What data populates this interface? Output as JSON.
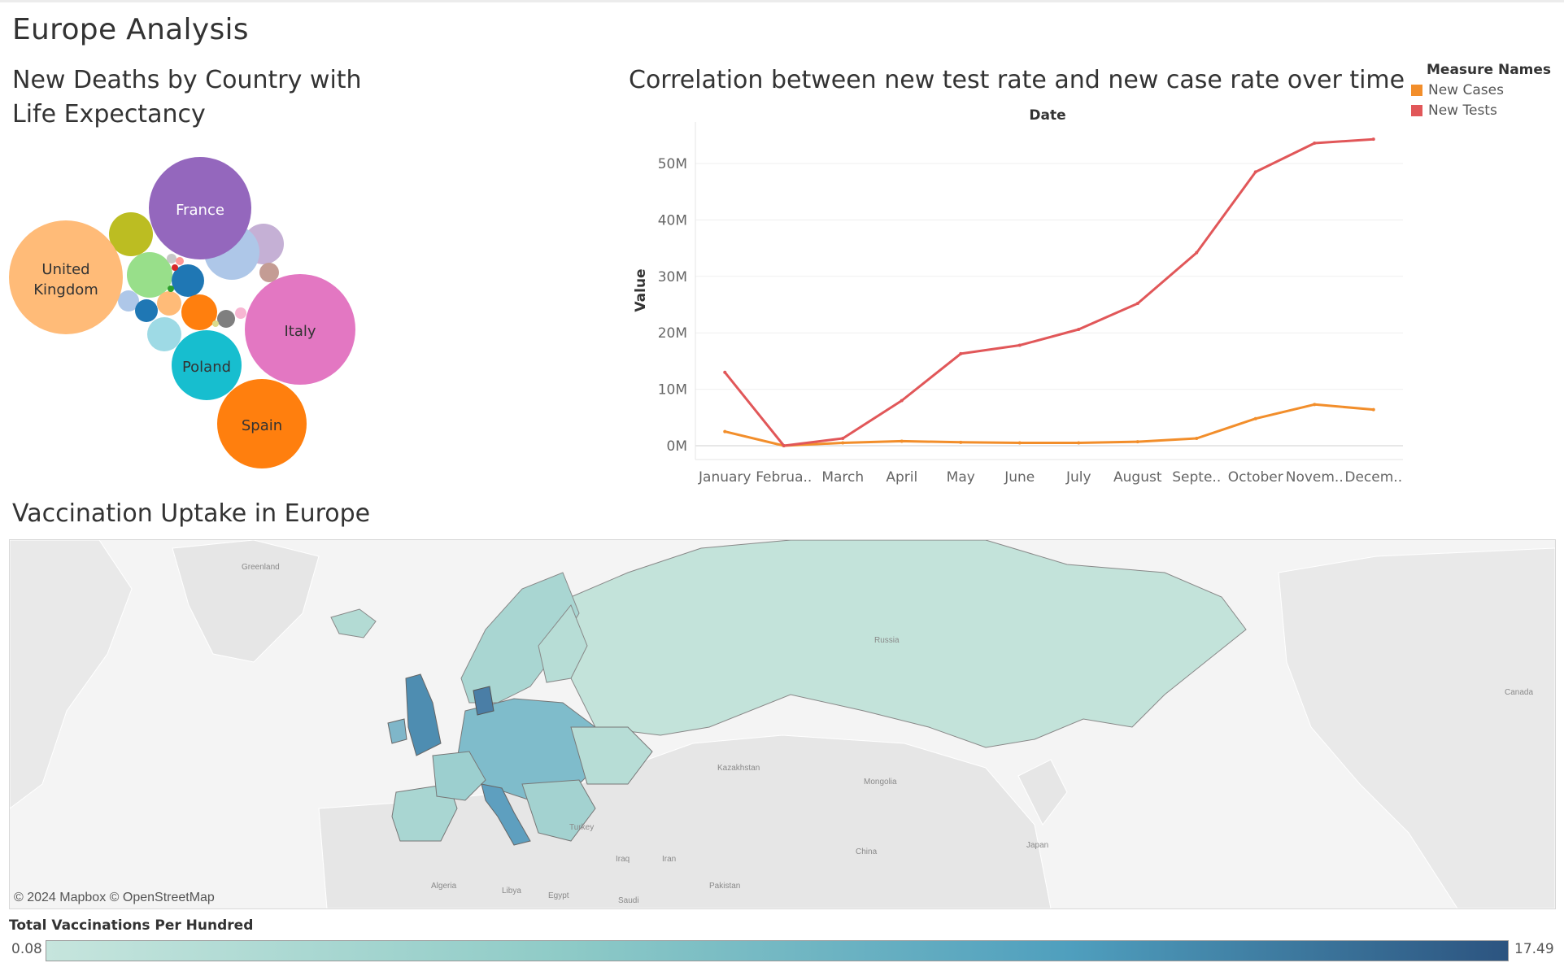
{
  "dashboard": {
    "title": "Europe Analysis"
  },
  "bubble": {
    "title": "New Deaths by Country with Life Expectancy",
    "labeled": [
      {
        "label": "France",
        "color": "#9467bd"
      },
      {
        "label": "United Kingdom",
        "label_lines": [
          "United",
          "Kingdom"
        ],
        "color": "#ffbb78"
      },
      {
        "label": "Italy",
        "color": "#e377c2"
      },
      {
        "label": "Poland",
        "color": "#17becf"
      },
      {
        "label": "Spain",
        "color": "#ff7f0e"
      }
    ]
  },
  "chart_data": {
    "type": "line",
    "title": "Correlation between new test rate and new case rate over time",
    "xlabel": "Date",
    "ylabel": "Value",
    "categories": [
      "January",
      "Februa..",
      "March",
      "April",
      "May",
      "June",
      "July",
      "August",
      "Septe..",
      "October",
      "Novem..",
      "Decem.."
    ],
    "y_ticks": [
      "0M",
      "10M",
      "20M",
      "30M",
      "40M",
      "50M"
    ],
    "ylim": [
      0,
      55000000
    ],
    "legend": {
      "title": "Measure Names",
      "placement": "right"
    },
    "series": [
      {
        "name": "New Cases",
        "color": "#f28e2b",
        "values": [
          2500000,
          0,
          500000,
          800000,
          600000,
          500000,
          500000,
          700000,
          1300000,
          4800000,
          7300000,
          6400000
        ]
      },
      {
        "name": "New Tests",
        "color": "#e15759",
        "values": [
          13000000,
          0,
          1300000,
          8000000,
          16300000,
          17800000,
          20600000,
          25200000,
          34200000,
          48500000,
          53600000,
          54300000
        ]
      }
    ],
    "grid": true
  },
  "map": {
    "title": "Vaccination Uptake in Europe",
    "credit": "© 2024 Mapbox © OpenStreetMap",
    "place_labels": [
      "Greenland",
      "Russia",
      "Kazakhstan",
      "Mongolia",
      "China",
      "Japan",
      "Canada",
      "Turkey",
      "Iraq",
      "Iran",
      "Pakistan",
      "Saudi",
      "Algeria",
      "Libya",
      "Egypt"
    ],
    "color_legend": {
      "title": "Total Vaccinations Per Hundred",
      "min": "0.08",
      "max": "17.49",
      "color_low": "#c6e5dd",
      "color_high": "#2c5480"
    }
  }
}
